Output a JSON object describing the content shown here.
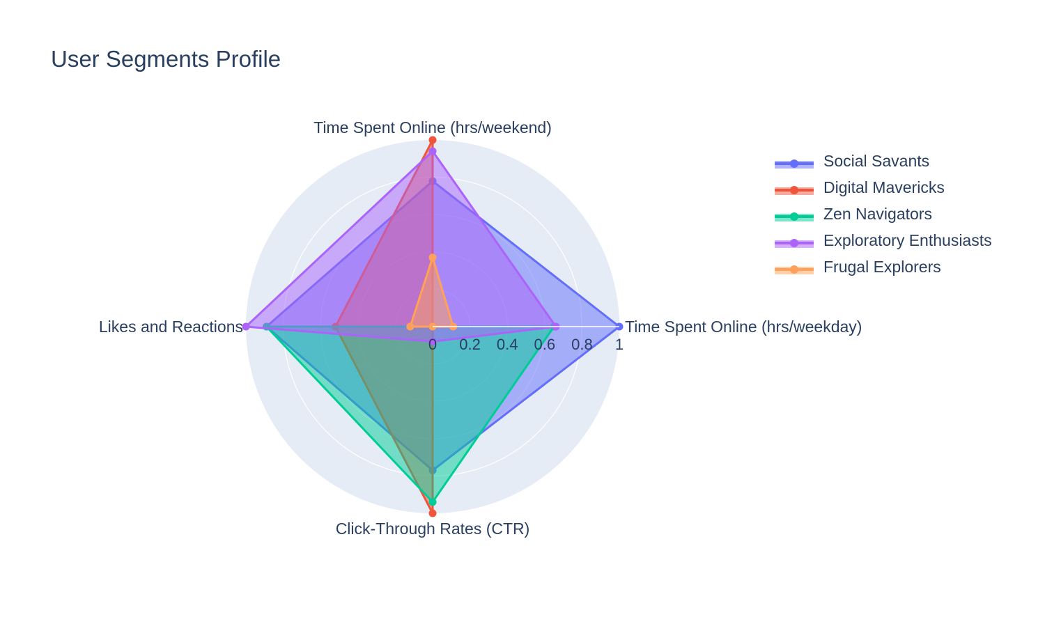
{
  "chart_data": {
    "type": "radar",
    "title": "User Segments Profile",
    "axes": [
      "Time Spent Online (hrs/weekday)",
      "Time Spent Online (hrs/weekend)",
      "Likes and Reactions",
      "Click-Through Rates (CTR)"
    ],
    "radial_range": [
      0,
      1
    ],
    "radial_ticks": [
      "0",
      "0.2",
      "0.4",
      "0.6",
      "0.8",
      "1"
    ],
    "radial_tick_values": [
      0,
      0.2,
      0.4,
      0.6,
      0.8,
      1
    ],
    "legend_position": "right",
    "series": [
      {
        "name": "Social Savants",
        "color": "#636efa",
        "values": [
          1.0,
          0.78,
          0.89,
          0.77
        ]
      },
      {
        "name": "Digital Mavericks",
        "color": "#ef553b",
        "values": [
          0.0,
          1.0,
          0.52,
          1.0
        ]
      },
      {
        "name": "Zen Navigators",
        "color": "#00cc96",
        "values": [
          0.65,
          0.0,
          0.89,
          0.94
        ]
      },
      {
        "name": "Exploratory Enthusiasts",
        "color": "#ab63fa",
        "values": [
          0.66,
          0.94,
          1.0,
          0.08
        ]
      },
      {
        "name": "Frugal Explorers",
        "color": "#ffa15a",
        "values": [
          0.11,
          0.37,
          0.12,
          0.0
        ]
      }
    ]
  }
}
